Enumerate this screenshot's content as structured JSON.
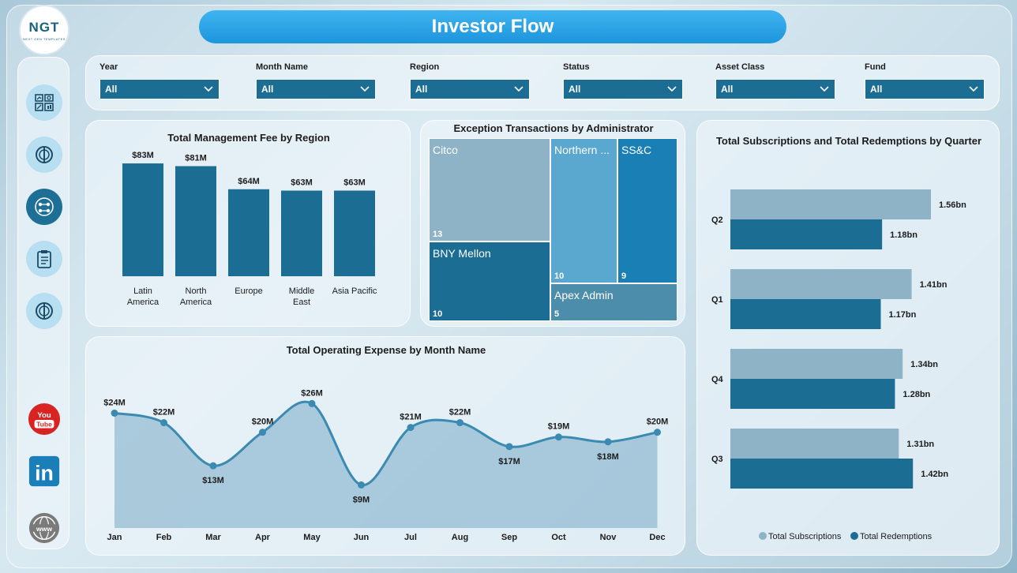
{
  "header": {
    "title": "Investor Flow",
    "logo_text": "NGT",
    "logo_subtext": "NEXT GEN TEMPLATES"
  },
  "colors": {
    "primary": "#1b6d93",
    "secondary": "#8fb3c6",
    "accent": "#2d97d8",
    "line": "#3a8ab2"
  },
  "sidebar": {
    "items": [
      {
        "icon": "dashboard-icon"
      },
      {
        "icon": "compass-icon"
      },
      {
        "icon": "team-icon"
      },
      {
        "icon": "clipboard-icon"
      },
      {
        "icon": "compass-icon"
      }
    ],
    "social": [
      {
        "icon": "youtube-icon",
        "label": "You\nTube"
      },
      {
        "icon": "linkedin-icon",
        "label": "in"
      },
      {
        "icon": "globe-icon",
        "label": "www"
      }
    ]
  },
  "filters": [
    {
      "label": "Year",
      "value": "All"
    },
    {
      "label": "Month Name",
      "value": "All"
    },
    {
      "label": "Region",
      "value": "All"
    },
    {
      "label": "Status",
      "value": "All"
    },
    {
      "label": "Asset Class",
      "value": "All"
    },
    {
      "label": "Fund",
      "value": "All"
    }
  ],
  "chart_data": [
    {
      "type": "bar",
      "title": "Total Management Fee by Region",
      "categories": [
        "Latin\nAmerica",
        "North\nAmerica",
        "Europe",
        "Middle\nEast",
        "Asia Pacific"
      ],
      "values": [
        83,
        81,
        64,
        63,
        63
      ],
      "data_labels": [
        "$83M",
        "$81M",
        "$64M",
        "$63M",
        "$63M"
      ],
      "unit": "$M",
      "ylim": [
        0,
        90
      ]
    },
    {
      "type": "treemap",
      "title": "Exception Transactions by Administrator",
      "items": [
        {
          "name": "Citco",
          "value": 13
        },
        {
          "name": "BNY Mellon",
          "value": 10
        },
        {
          "name": "Northern ...",
          "value": 10
        },
        {
          "name": "SS&C",
          "value": 9
        },
        {
          "name": "Apex Admin",
          "value": 5
        }
      ]
    },
    {
      "type": "area",
      "title": "Total Operating Expense by Month Name",
      "categories": [
        "Jan",
        "Feb",
        "Mar",
        "Apr",
        "May",
        "Jun",
        "Jul",
        "Aug",
        "Sep",
        "Oct",
        "Nov",
        "Dec"
      ],
      "values": [
        24,
        22,
        13,
        20,
        26,
        9,
        21,
        22,
        17,
        19,
        18,
        20
      ],
      "data_labels": [
        "$24M",
        "$22M",
        "$13M",
        "$20M",
        "$26M",
        "$9M",
        "$21M",
        "$22M",
        "$17M",
        "$19M",
        "$18M",
        "$20M"
      ],
      "unit": "$M",
      "ylim": [
        0,
        30
      ]
    },
    {
      "type": "bar",
      "orientation": "horizontal",
      "title": "Total Subscriptions and Total Redemptions by Quarter",
      "categories": [
        "Q2",
        "Q1",
        "Q4",
        "Q3"
      ],
      "series": [
        {
          "name": "Total Subscriptions",
          "values": [
            1.56,
            1.41,
            1.34,
            1.31
          ],
          "data_labels": [
            "1.56bn",
            "1.41bn",
            "1.34bn",
            "1.31bn"
          ]
        },
        {
          "name": "Total Redemptions",
          "values": [
            1.18,
            1.17,
            1.28,
            1.42
          ],
          "data_labels": [
            "1.18bn",
            "1.17bn",
            "1.28bn",
            "1.42bn"
          ]
        }
      ],
      "unit": "bn",
      "xlim": [
        0,
        1.8
      ],
      "legend_position": "bottom"
    }
  ]
}
